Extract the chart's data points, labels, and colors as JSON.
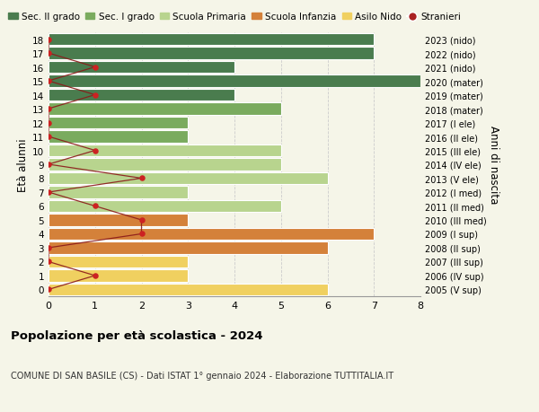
{
  "ages": [
    18,
    17,
    16,
    15,
    14,
    13,
    12,
    11,
    10,
    9,
    8,
    7,
    6,
    5,
    4,
    3,
    2,
    1,
    0
  ],
  "labels_right": [
    "2005 (V sup)",
    "2006 (IV sup)",
    "2007 (III sup)",
    "2008 (II sup)",
    "2009 (I sup)",
    "2010 (III med)",
    "2011 (II med)",
    "2012 (I med)",
    "2013 (V ele)",
    "2014 (IV ele)",
    "2015 (III ele)",
    "2016 (II ele)",
    "2017 (I ele)",
    "2018 (mater)",
    "2019 (mater)",
    "2020 (mater)",
    "2021 (nido)",
    "2022 (nido)",
    "2023 (nido)"
  ],
  "bar_values": [
    7,
    7,
    4,
    8,
    4,
    5,
    3,
    3,
    5,
    5,
    6,
    3,
    5,
    3,
    7,
    6,
    3,
    3,
    6
  ],
  "bar_colors": [
    "#4a7c4e",
    "#4a7c4e",
    "#4a7c4e",
    "#4a7c4e",
    "#4a7c4e",
    "#7aab5e",
    "#7aab5e",
    "#7aab5e",
    "#b8d48e",
    "#b8d48e",
    "#b8d48e",
    "#b8d48e",
    "#b8d48e",
    "#d4813a",
    "#d4813a",
    "#d4813a",
    "#f0d060",
    "#f0d060",
    "#f0d060"
  ],
  "stranieri_values": [
    0,
    0,
    1,
    0,
    1,
    0,
    0,
    0,
    1,
    0,
    2,
    0,
    1,
    2,
    2,
    0,
    0,
    1,
    0
  ],
  "legend_labels": [
    "Sec. II grado",
    "Sec. I grado",
    "Scuola Primaria",
    "Scuola Infanzia",
    "Asilo Nido",
    "Stranieri"
  ],
  "legend_colors": [
    "#4a7c4e",
    "#7aab5e",
    "#b8d48e",
    "#d4813a",
    "#f0d060",
    "#aa2222"
  ],
  "title": "Popolazione per età scolastica - 2024",
  "subtitle": "COMUNE DI SAN BASILE (CS) - Dati ISTAT 1° gennaio 2024 - Elaborazione TUTTITALIA.IT",
  "ylabel": "Età alunni",
  "ylabel2": "Anni di nascita",
  "xlim": [
    0,
    8
  ],
  "ylim": [
    -0.5,
    18.5
  ],
  "bg_color": "#f5f5e8",
  "grid_color": "#cccccc",
  "stranieri_dot_ages": [
    18,
    17,
    16,
    15,
    14,
    13,
    12,
    11,
    10,
    9,
    8,
    7,
    6,
    5,
    4,
    3,
    2,
    1,
    0
  ],
  "stranieri_dot_vals": [
    0,
    0,
    1,
    0,
    1,
    0,
    0,
    0,
    1,
    0,
    2,
    0,
    1,
    2,
    2,
    0,
    0,
    1,
    0
  ]
}
